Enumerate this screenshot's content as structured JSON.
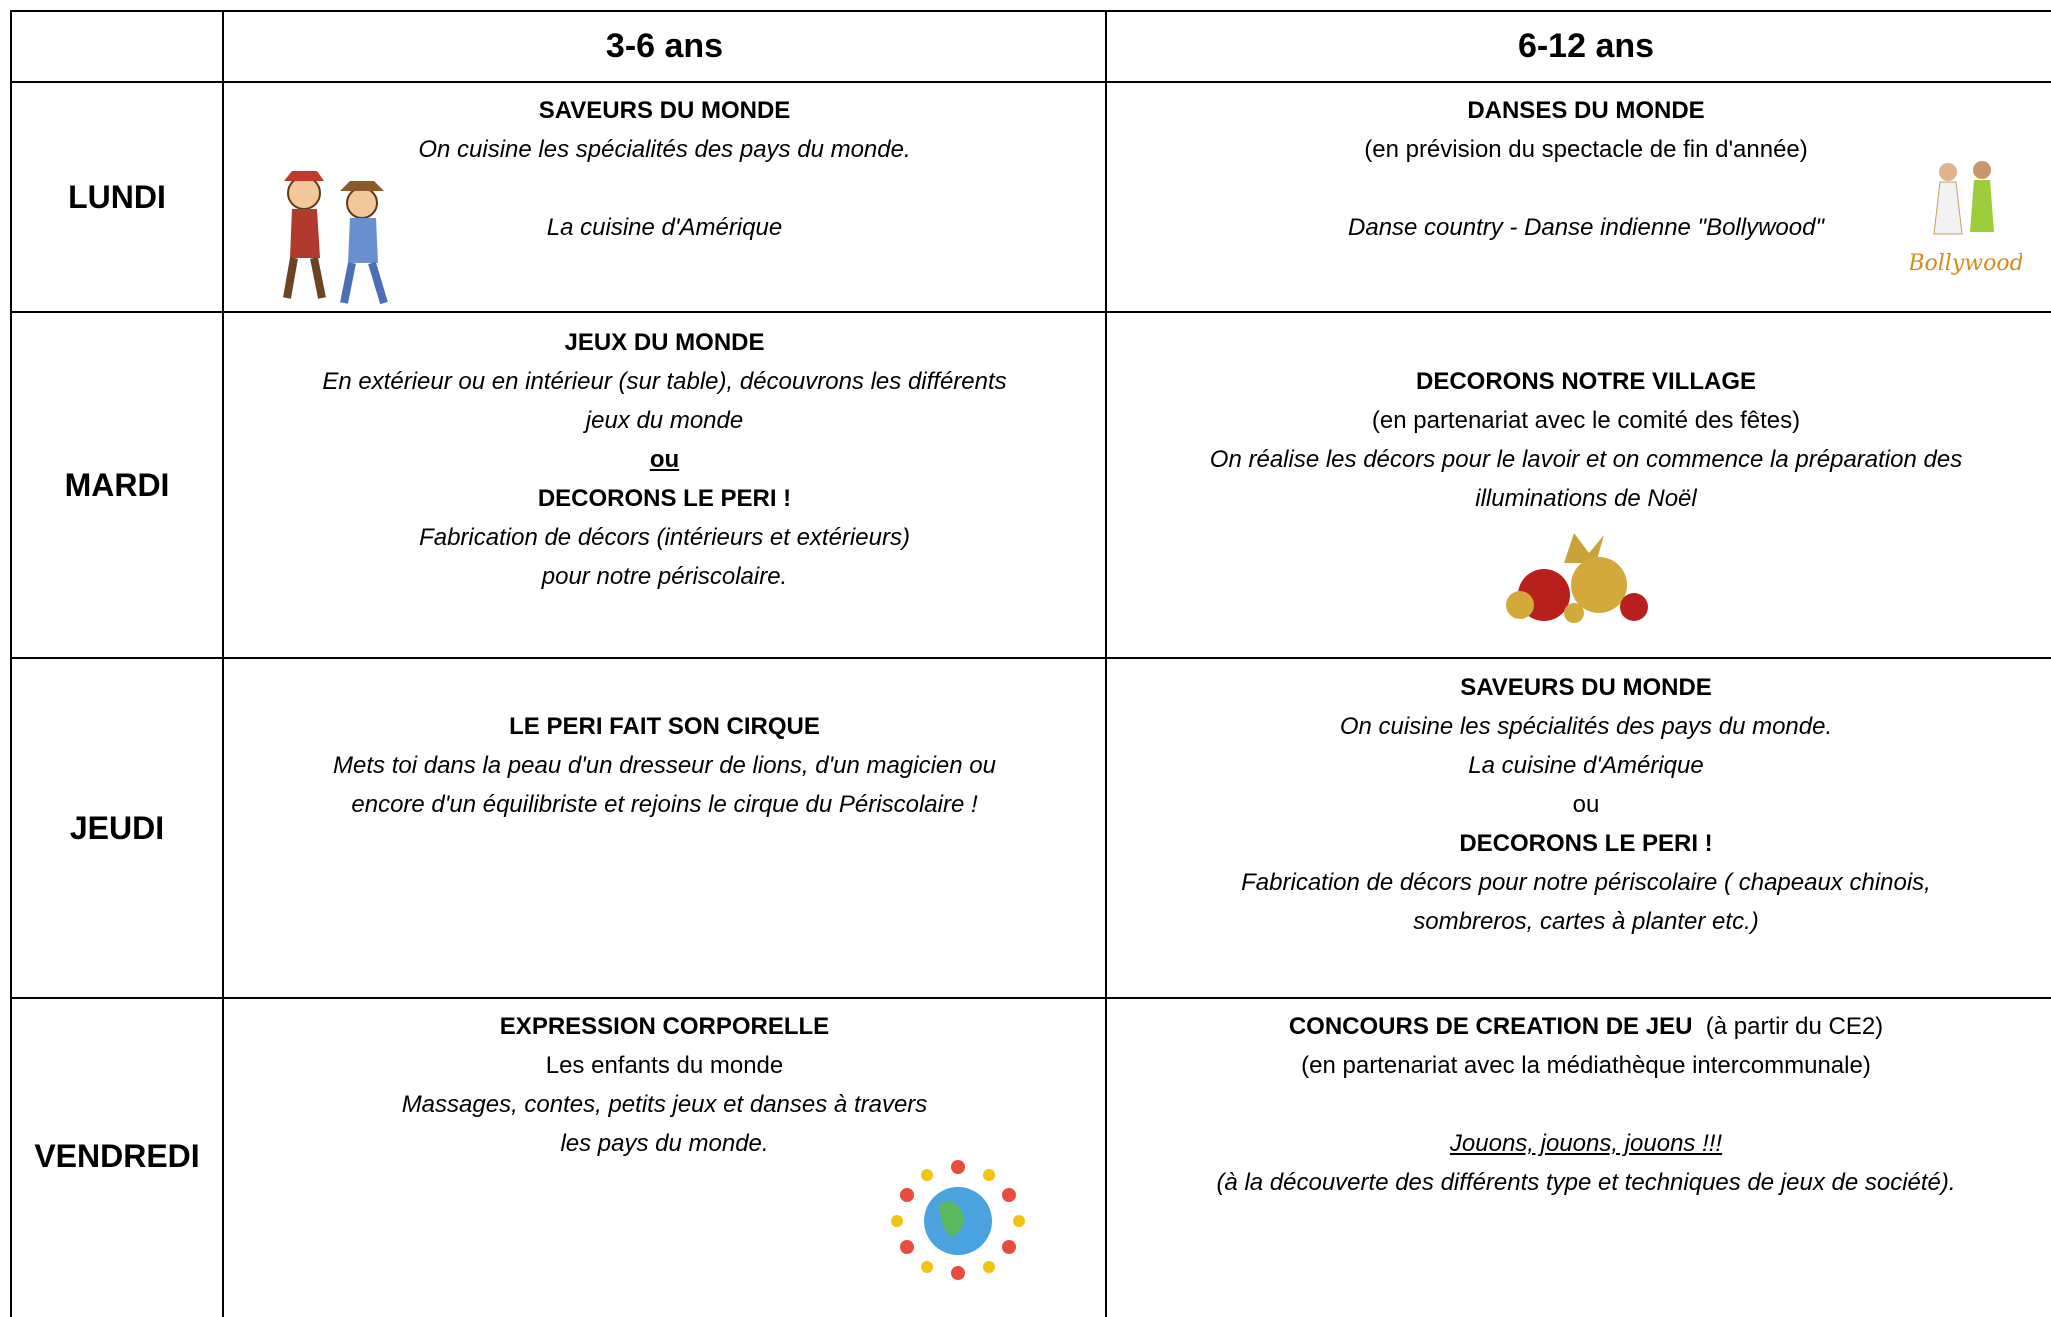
{
  "header": {
    "columns": [
      "3-6 ans",
      "6-12 ans"
    ]
  },
  "rows": [
    {
      "day": "LUNDI",
      "cells": [
        [
          "SAVEURS DU MONDE",
          "On cuisine les spécialités des pays du monde.",
          "La cuisine d'Amérique"
        ],
        [
          "DANSES DU MONDE",
          "(en prévision du spectacle de fin d'année)",
          "Danse country -  Danse indienne \"Bollywood\""
        ]
      ]
    },
    {
      "day": "MARDI",
      "cells": [
        [
          "JEUX DU MONDE",
          "En extérieur ou en intérieur (sur table), découvrons les différents",
          "jeux du monde",
          "ou",
          "DECORONS LE PERI !",
          "Fabrication de décors (intérieurs et extérieurs)",
          "pour notre périscolaire."
        ],
        [
          "DECORONS NOTRE VILLAGE",
          "(en partenariat avec le comité des fêtes)",
          "On réalise les décors pour le lavoir et on commence la préparation des",
          "illuminations de Noël"
        ]
      ]
    },
    {
      "day": "JEUDI",
      "cells": [
        [
          "LE PERI FAIT SON CIRQUE",
          "Mets toi dans la peau d'un dresseur de lions, d'un magicien ou",
          "encore d'un équilibriste et rejoins le cirque du Périscolaire !"
        ],
        [
          "SAVEURS DU MONDE",
          "On cuisine les spécialités des pays du monde.",
          "La cuisine d'Amérique",
          "ou",
          "DECORONS LE PERI !",
          "Fabrication de décors pour notre périscolaire ( chapeaux chinois,",
          "sombreros, cartes à planter etc.)"
        ]
      ]
    },
    {
      "day": "VENDREDI",
      "cells": [
        [
          "EXPRESSION CORPORELLE",
          "Les enfants du monde",
          "Massages, contes, petits jeux et danses à travers",
          "les pays du monde."
        ],
        [
          "CONCOURS DE CREATION DE JEU",
          "(à partir du CE2)",
          "(en partenariat avec la médiathèque intercommunale)",
          "Jouons, jouons, jouons !!!",
          "(à la découverte des différents type et techniques de jeux de société)."
        ]
      ]
    }
  ],
  "images": {
    "bollywood_caption": "Bollywood"
  }
}
